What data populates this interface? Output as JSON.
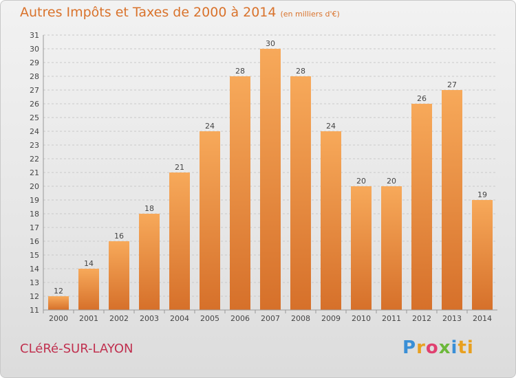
{
  "title": "Autres Impôts et Taxes de 2000 à 2014",
  "unit": "(en milliers d'€)",
  "commune": "CLéRé-SUR-LAYON",
  "logo": [
    "P",
    "r",
    "o",
    "x",
    "i",
    "ti"
  ],
  "colors": {
    "bar_light": "#f4a352",
    "bar_dark": "#d9742b",
    "title": "#d9722b",
    "commune": "#c0304f"
  },
  "chart_data": {
    "type": "bar",
    "categories": [
      "2000",
      "2001",
      "2002",
      "2003",
      "2004",
      "2005",
      "2006",
      "2007",
      "2008",
      "2009",
      "2010",
      "2011",
      "2012",
      "2013",
      "2014"
    ],
    "values": [
      12,
      14,
      16,
      18,
      21,
      24,
      28,
      30,
      28,
      24,
      20,
      20,
      26,
      27,
      19
    ],
    "ylim": [
      11,
      31
    ],
    "yticks": [
      11,
      12,
      13,
      14,
      15,
      16,
      17,
      18,
      19,
      20,
      21,
      22,
      23,
      24,
      25,
      26,
      27,
      28,
      29,
      30,
      31
    ],
    "grid": true,
    "title": "Autres Impôts et Taxes de 2000 à 2014",
    "xlabel": "",
    "ylabel": ""
  }
}
